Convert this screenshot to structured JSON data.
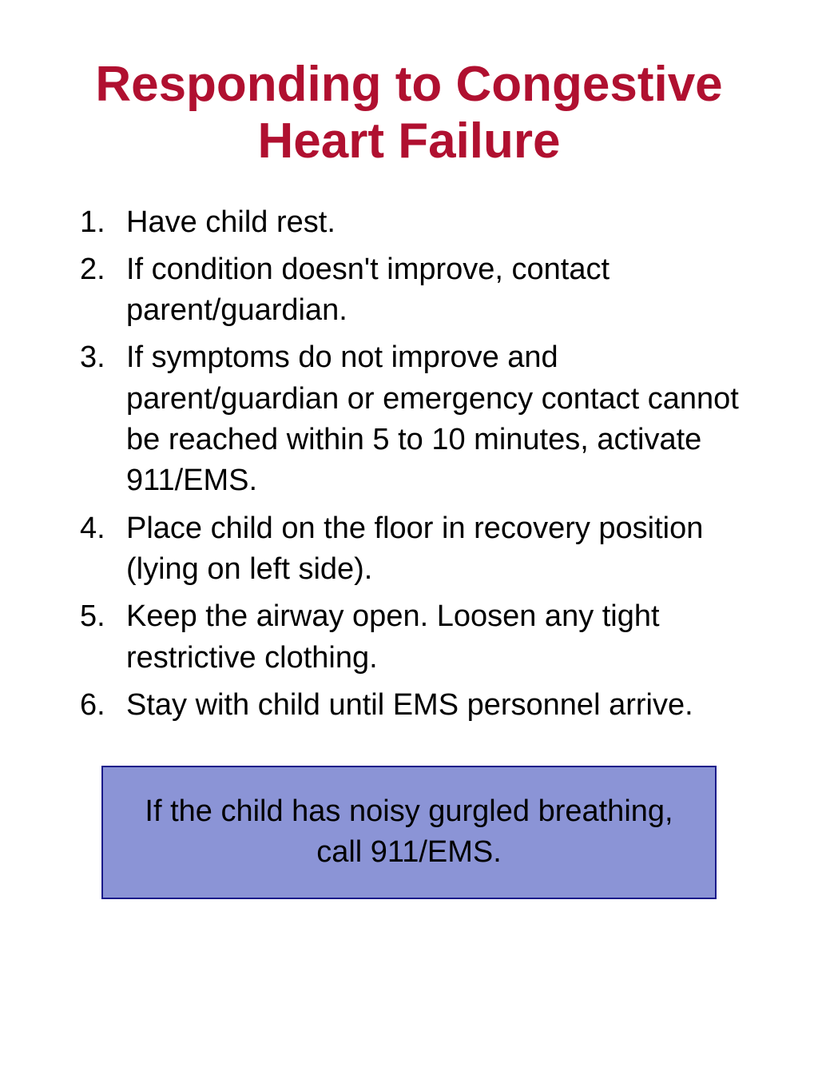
{
  "title": "Responding to Congestive Heart Failure",
  "title_color": "#b01030",
  "title_fontsize": 62,
  "body_fontsize": 38,
  "body_color": "#000000",
  "background_color": "#ffffff",
  "list_items": [
    "Have child rest.",
    "If condition doesn't improve, contact parent/guardian.",
    "If  symptoms do not improve and parent/guardian or emergency contact cannot be reached within 5 to 10 minutes, activate 911/EMS.",
    "Place child on the floor in recovery position (lying on left side).",
    "Keep the airway open.  Loosen any tight restrictive clothing.",
    "Stay with child until EMS personnel arrive."
  ],
  "callout": {
    "text": "If the child  has noisy gurgled breathing,  call 911/EMS.",
    "background_color": "#8b94d6",
    "border_color": "#1a1a8a",
    "text_color": "#000000"
  }
}
